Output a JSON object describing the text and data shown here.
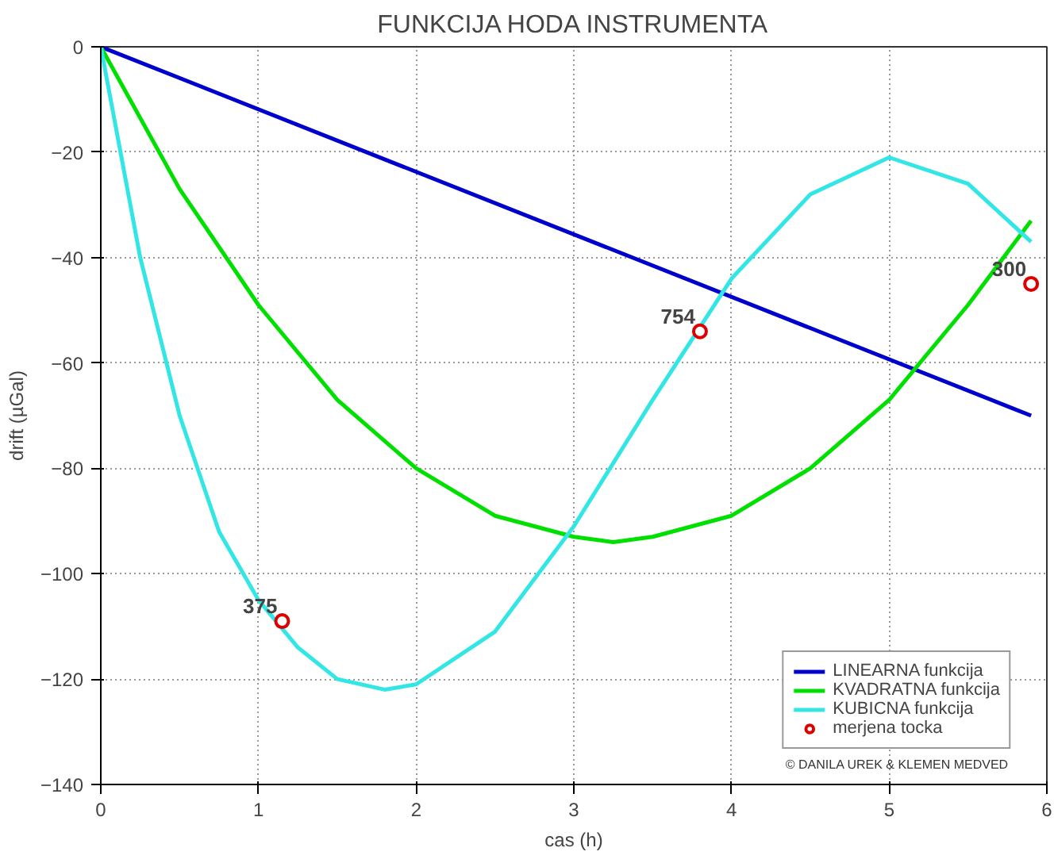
{
  "chart_data": {
    "type": "line",
    "title": "FUNKCIJA HODA INSTRUMENTA",
    "xlabel": "cas (h)",
    "ylabel": "drift (µGal)",
    "xlim": [
      0,
      6
    ],
    "ylim": [
      -140,
      0
    ],
    "xticks": [
      0,
      1,
      2,
      3,
      4,
      5,
      6
    ],
    "yticks": [
      -140,
      -120,
      -100,
      -80,
      -60,
      -40,
      -20,
      0
    ],
    "grid": true,
    "legend": "bottom right",
    "marker": "none",
    "line_style": "solid",
    "series": [
      {
        "name": "LINEARNA funkcija",
        "color": "#0000cc",
        "x": [
          0,
          5.9
        ],
        "values": [
          0,
          -70
        ]
      },
      {
        "name": "KVADRATNA funkcija",
        "color": "#00e000",
        "x": [
          0,
          0.5,
          1,
          1.5,
          2,
          2.5,
          3,
          3.25,
          3.5,
          4,
          4.5,
          5,
          5.5,
          5.9
        ],
        "values": [
          0,
          -27,
          -49,
          -67,
          -80,
          -89,
          -93,
          -94,
          -93,
          -89,
          -80,
          -67,
          -49,
          -33
        ]
      },
      {
        "name": "KUBICNA funkcija",
        "color": "#33e6e6",
        "x": [
          0,
          0.25,
          0.5,
          0.75,
          1,
          1.25,
          1.5,
          1.8,
          2,
          2.5,
          3,
          3.5,
          4,
          4.5,
          5,
          5.5,
          5.9
        ],
        "values": [
          0,
          -40,
          -70,
          -92,
          -105,
          -114,
          -120,
          -122,
          -121,
          -111,
          -91,
          -67,
          -44,
          -28,
          -21,
          -26,
          -37
        ]
      },
      {
        "name": "merjena tocka",
        "type": "scatter",
        "marker": "circle",
        "color": "#dd0000",
        "x": [
          1.15,
          3.8,
          5.9
        ],
        "values": [
          -109,
          -54,
          -45
        ]
      }
    ],
    "annotations": [
      {
        "text": "375",
        "x": 1.15,
        "y": -109
      },
      {
        "text": "754",
        "x": 3.8,
        "y": -54
      },
      {
        "text": "300",
        "x": 5.9,
        "y": -45
      },
      "© DANILA UREK & KLEMEN MEDVED"
    ]
  }
}
